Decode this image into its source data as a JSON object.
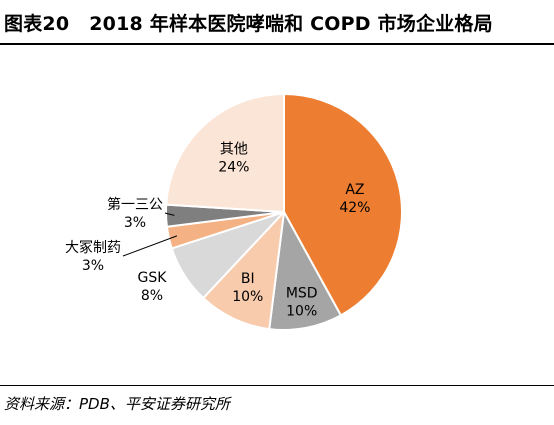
{
  "figure": {
    "number": "图表20",
    "title": "2018 年样本医院哮喘和 COPD 市场企业格局"
  },
  "source": "资料来源：PDB、平安证券研究所",
  "chart_data": {
    "type": "pie",
    "title": "2018 年样本医院哮喘和 COPD 市场企业格局",
    "start_angle_deg": 0,
    "direction": "clockwise",
    "legend": "none",
    "slices": [
      {
        "name": "AZ",
        "value": 42,
        "label": "42%",
        "color": "#ED7D31",
        "label_color": "#000000"
      },
      {
        "name": "MSD",
        "value": 10,
        "label": "10%",
        "color": "#A5A5A5",
        "label_color": "#000000"
      },
      {
        "name": "BI",
        "value": 10,
        "label": "10%",
        "color": "#F8CBAD",
        "label_color": "#000000"
      },
      {
        "name": "GSK",
        "value": 8,
        "label": "8%",
        "color": "#D9D9D9",
        "label_color": "#000000"
      },
      {
        "name": "大冢制药",
        "value": 3,
        "label": "3%",
        "color": "#F4B183",
        "label_color": "#000000"
      },
      {
        "name": "第一三公",
        "value": 3,
        "label": "3%",
        "color": "#7F7F7F",
        "label_color": "#000000"
      },
      {
        "name": "其他",
        "value": 24,
        "label": "24%",
        "color": "#FBE5D6",
        "label_color": "#000000"
      }
    ]
  }
}
